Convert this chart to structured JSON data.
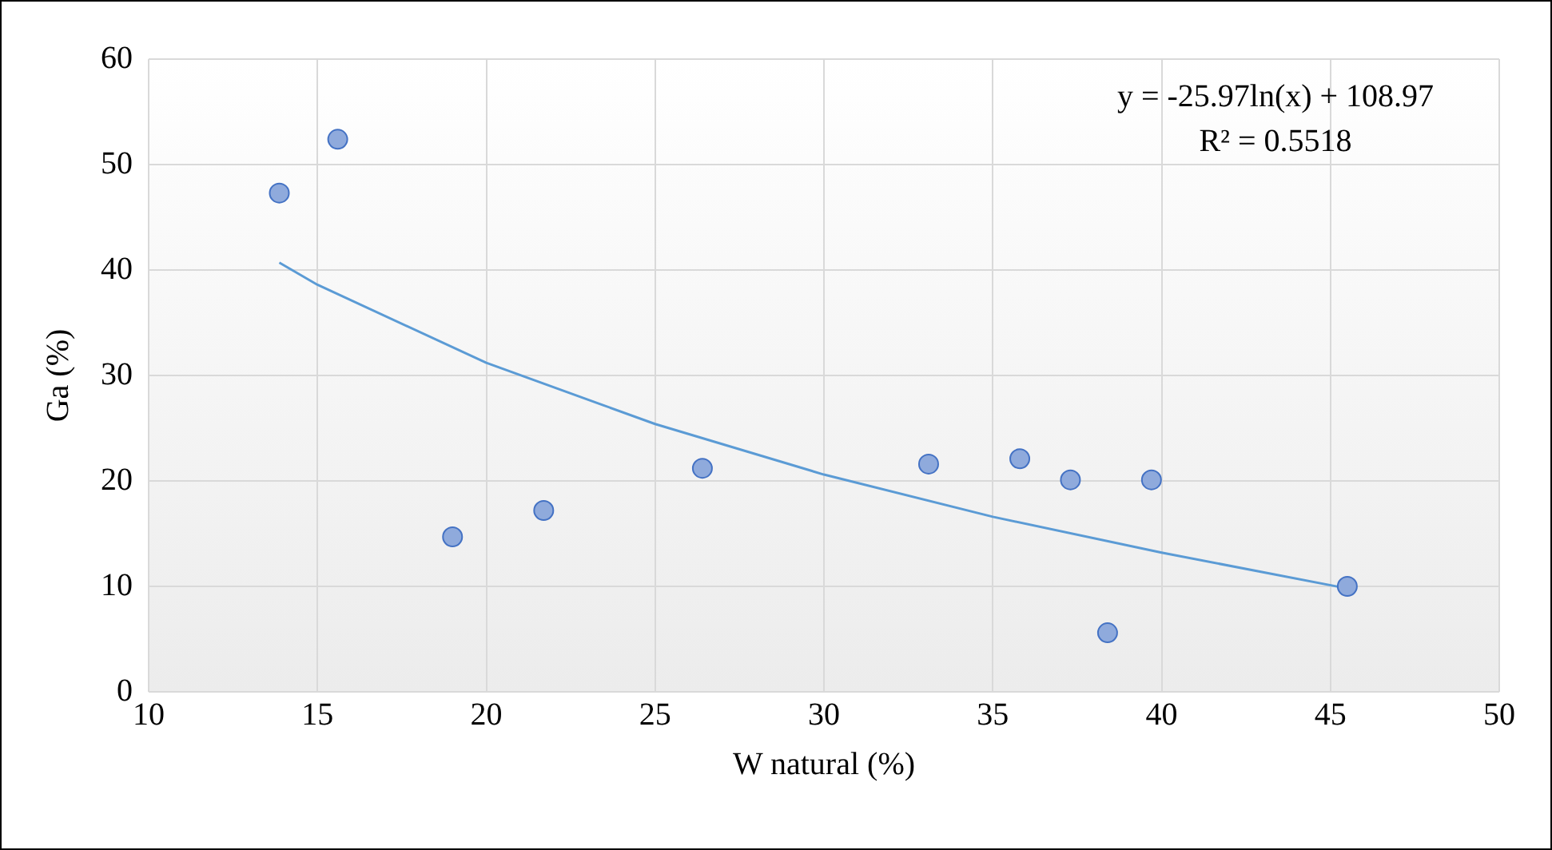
{
  "chart_data": {
    "type": "scatter",
    "xlabel": "W natural (%)",
    "ylabel": "Ga (%)",
    "x": [
      13.87,
      15.6,
      19.0,
      21.7,
      26.4,
      33.1,
      35.8,
      37.3,
      39.7,
      38.4,
      45.5
    ],
    "series": [
      {
        "color": "#8faadc",
        "values": [
          47.3,
          52.4,
          14.7,
          17.2,
          21.2,
          21.6,
          22.1,
          20.1,
          20.1,
          5.6,
          10.0
        ],
        "marker": "circle"
      },
      {
        "type": "line",
        "color": "#5b9bd5",
        "x": [
          13.87,
          15,
          20,
          25,
          30,
          35,
          40,
          45.5
        ],
        "values": [
          40.7,
          38.6,
          31.2,
          25.4,
          20.6,
          16.6,
          13.2,
          9.8
        ],
        "marker": "none"
      }
    ],
    "xlim": [
      10,
      50
    ],
    "xticks": [
      10,
      15,
      20,
      25,
      30,
      35,
      40,
      45,
      50
    ],
    "ylim": [
      0,
      60
    ],
    "yticks": [
      0,
      10,
      20,
      30,
      40,
      50,
      60
    ],
    "grid": true,
    "legend": false,
    "annotations": [
      "y = -25.97ln(x) + 108.97",
      "R² = 0.5518"
    ]
  }
}
